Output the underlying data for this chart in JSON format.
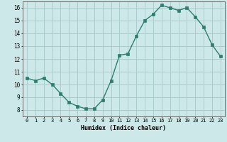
{
  "x": [
    0,
    1,
    2,
    3,
    4,
    5,
    6,
    7,
    8,
    9,
    10,
    11,
    12,
    13,
    14,
    15,
    16,
    17,
    18,
    19,
    20,
    21,
    22,
    23
  ],
  "y": [
    10.5,
    10.3,
    10.5,
    10.0,
    9.3,
    8.6,
    8.3,
    8.1,
    8.1,
    8.8,
    10.3,
    12.3,
    12.4,
    13.8,
    15.0,
    15.5,
    16.2,
    16.0,
    15.8,
    16.0,
    15.3,
    14.5,
    13.1,
    12.2
  ],
  "bg_color": "#cce8e8",
  "grid_color": "#aacccc",
  "line_color": "#2e7d6e",
  "marker_color": "#2e7d6e",
  "xlabel": "Humidex (Indice chaleur)",
  "ylim": [
    7.5,
    16.5
  ],
  "xlim": [
    -0.5,
    23.5
  ],
  "yticks": [
    8,
    9,
    10,
    11,
    12,
    13,
    14,
    15,
    16
  ],
  "xticks": [
    0,
    1,
    2,
    3,
    4,
    5,
    6,
    7,
    8,
    9,
    10,
    11,
    12,
    13,
    14,
    15,
    16,
    17,
    18,
    19,
    20,
    21,
    22,
    23
  ]
}
